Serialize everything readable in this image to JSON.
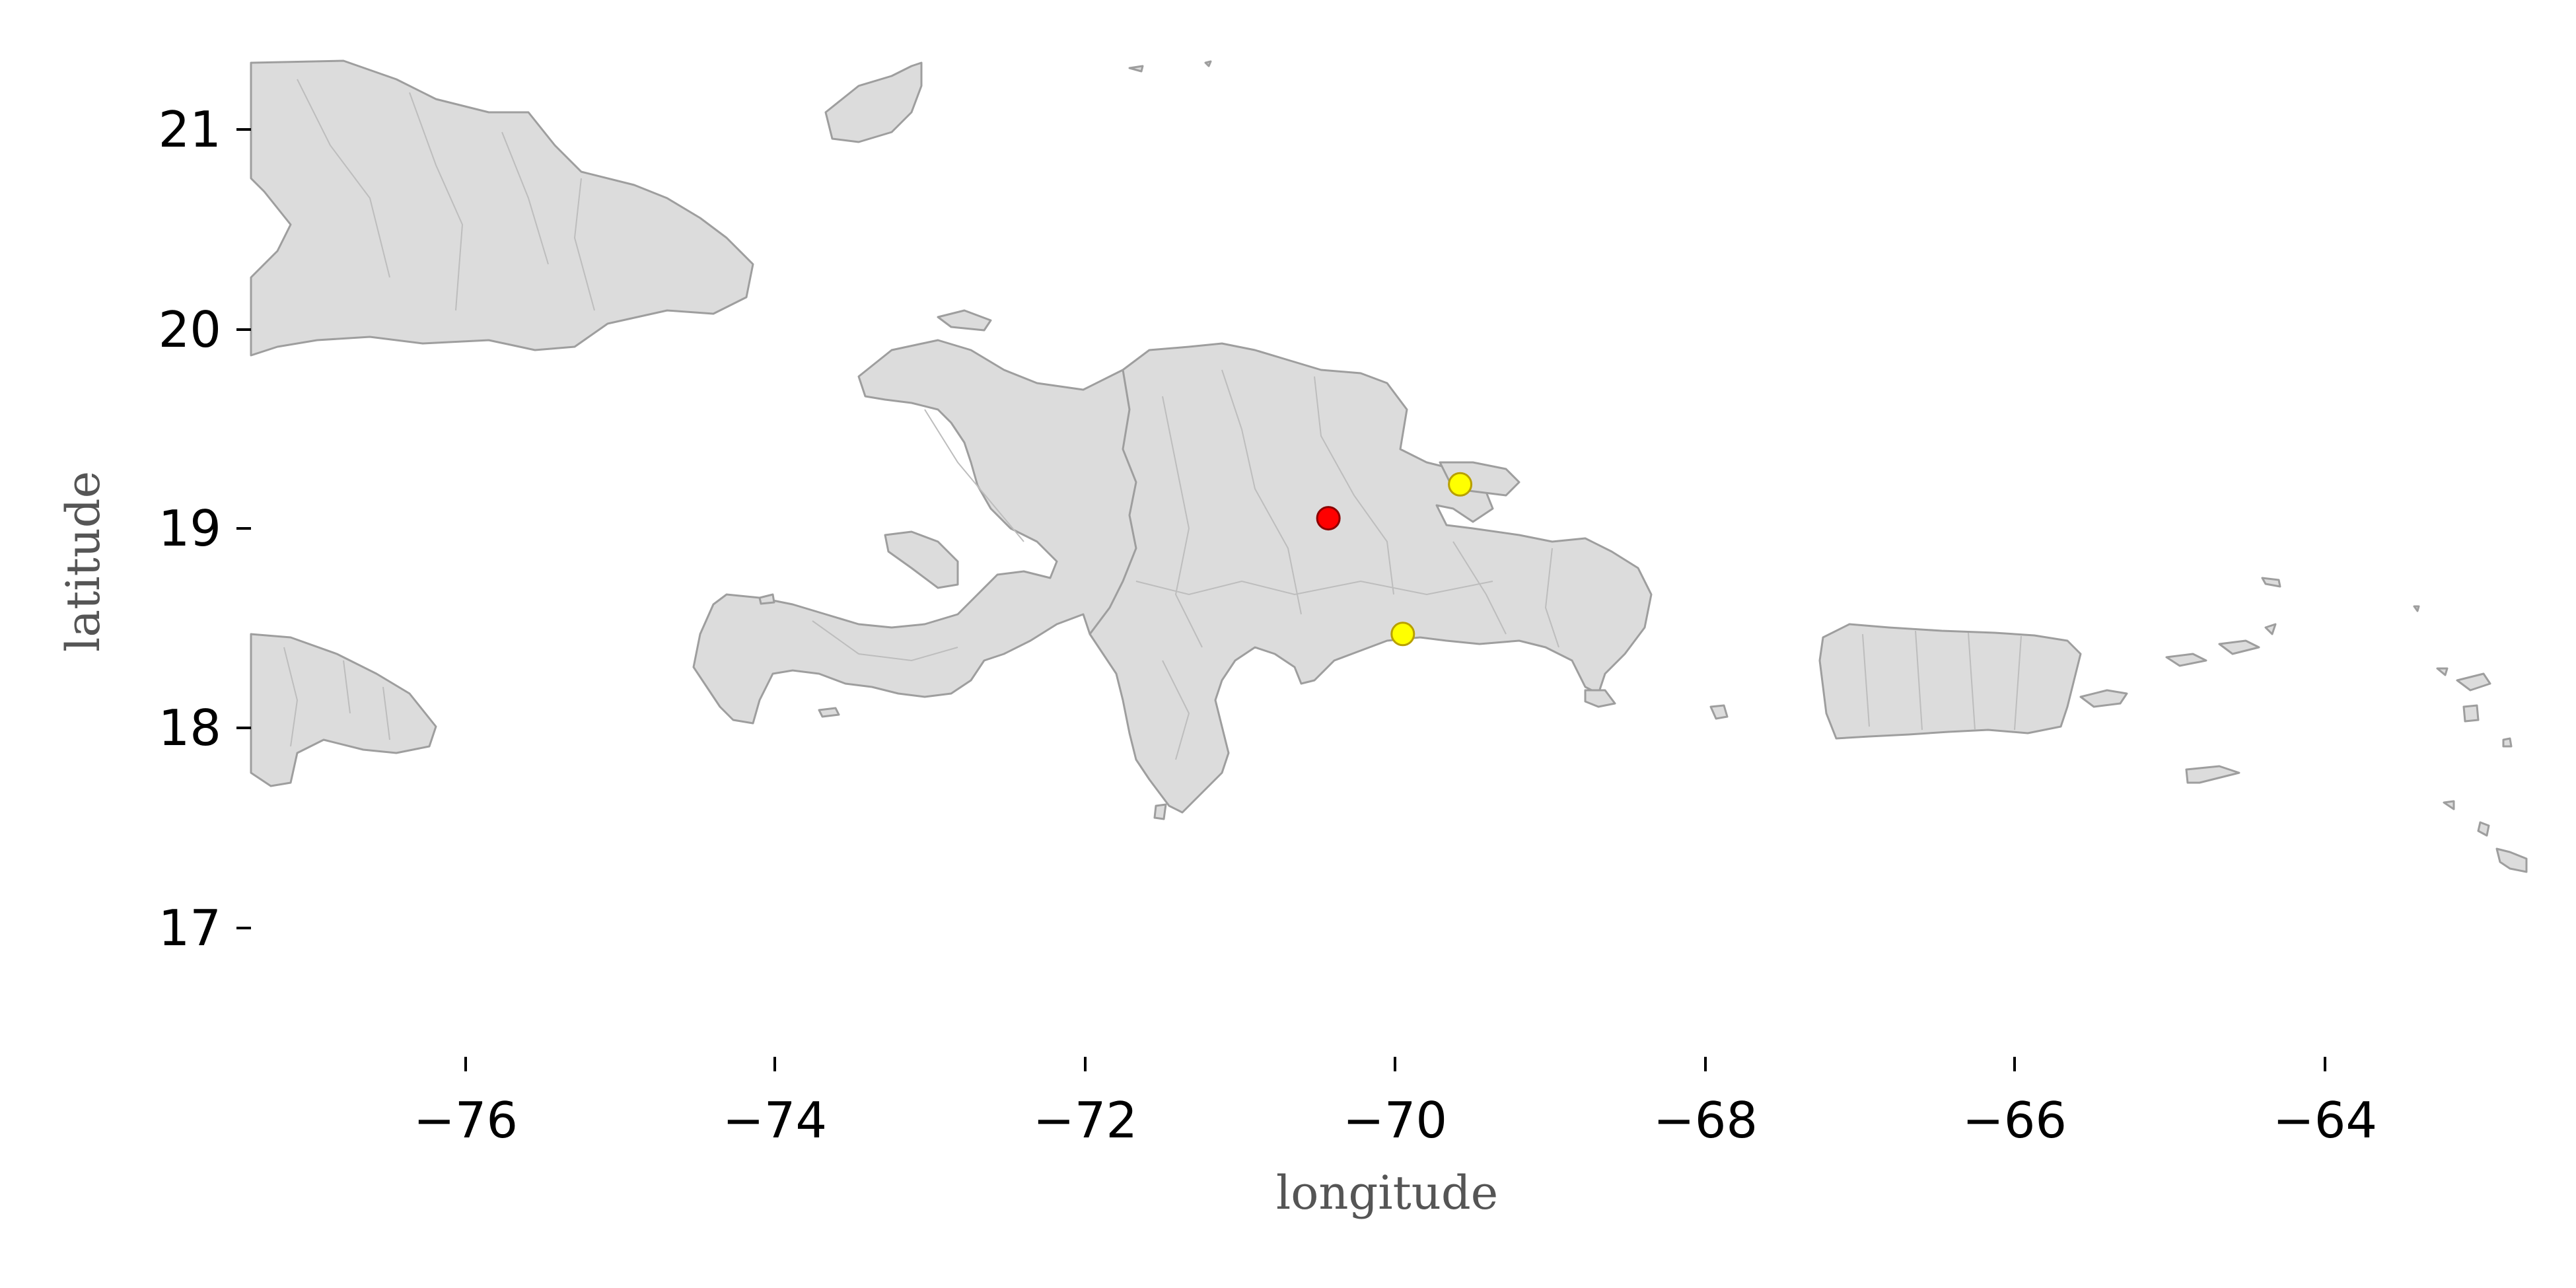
{
  "map": {
    "xlabel": "longitude",
    "ylabel": "latitude",
    "x_ticks": [
      "−76",
      "−74",
      "−72",
      "−70",
      "−68",
      "−66",
      "−64"
    ],
    "y_ticks": [
      "21",
      "20",
      "19",
      "18",
      "17"
    ],
    "xlim": [
      -77.4,
      -62.7
    ],
    "ylim": [
      16.35,
      21.35
    ],
    "colors": {
      "land": "#dcdcdc",
      "border": "#9e9e9e",
      "marker_primary": "#ff0000",
      "marker_secondary": "#ffff00"
    }
  },
  "chart_data": {
    "type": "scatter",
    "title": "",
    "xlabel": "longitude",
    "ylabel": "latitude",
    "xlim": [
      -77.4,
      -62.7
    ],
    "ylim": [
      16.35,
      21.35
    ],
    "grid": false,
    "series": [
      {
        "color": "#ff0000",
        "points": [
          {
            "x": -70.45,
            "y": 19.05
          }
        ]
      },
      {
        "color": "#ffff00",
        "points": [
          {
            "x": -69.6,
            "y": 19.22
          },
          {
            "x": -69.97,
            "y": 18.47
          }
        ]
      }
    ]
  }
}
